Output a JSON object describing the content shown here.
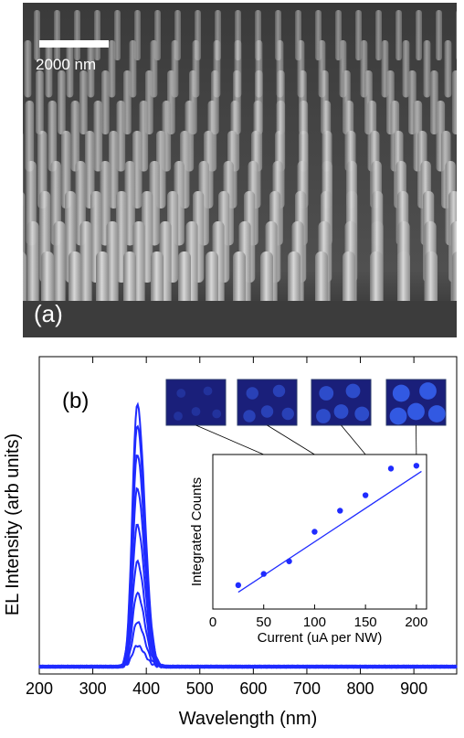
{
  "panel_a": {
    "label": "(a)",
    "scale_bar_label": "2000 nm"
  },
  "panel_b": {
    "label": "(b)",
    "xlabel": "Wavelength (nm)",
    "ylabel": "EL Intensity (arb units)",
    "x_ticks": [
      200,
      300,
      400,
      500,
      600,
      700,
      800,
      900
    ],
    "colors": {
      "spectra": "#1f2bff",
      "inset_line": "#1f2bff",
      "inset_points": "#1f2bff"
    },
    "inset_images": [
      {
        "name": "el-image-1",
        "intensity": 0.15
      },
      {
        "name": "el-image-2",
        "intensity": 0.45
      },
      {
        "name": "el-image-3",
        "intensity": 0.65
      },
      {
        "name": "el-image-4",
        "intensity": 0.9
      }
    ]
  },
  "chart_data": [
    {
      "type": "line",
      "xlabel": "Wavelength (nm)",
      "ylabel": "EL Intensity (arb units)",
      "xlim": [
        200,
        980
      ],
      "ylim": [
        0,
        1.0
      ],
      "peak_wavelength": 383,
      "series": [
        {
          "peak": 0.08
        },
        {
          "peak": 0.17
        },
        {
          "peak": 0.28
        },
        {
          "peak": 0.4
        },
        {
          "peak": 0.54
        },
        {
          "peak": 0.68
        },
        {
          "peak": 0.81
        },
        {
          "peak": 0.92
        },
        {
          "peak": 1.0
        }
      ]
    },
    {
      "type": "scatter",
      "xlabel": "Current (uA per NW)",
      "ylabel": "Integrated Counts",
      "xlim": [
        0,
        210
      ],
      "x_ticks": [
        0,
        50,
        100,
        150,
        200
      ],
      "x": [
        25,
        50,
        75,
        100,
        125,
        150,
        175,
        200
      ],
      "y": [
        0.17,
        0.25,
        0.34,
        0.55,
        0.7,
        0.81,
        1.0,
        1.02
      ],
      "fit_line": {
        "x": [
          25,
          205
        ],
        "y": [
          0.12,
          0.98
        ]
      },
      "ylim": [
        0,
        1.1
      ]
    }
  ]
}
